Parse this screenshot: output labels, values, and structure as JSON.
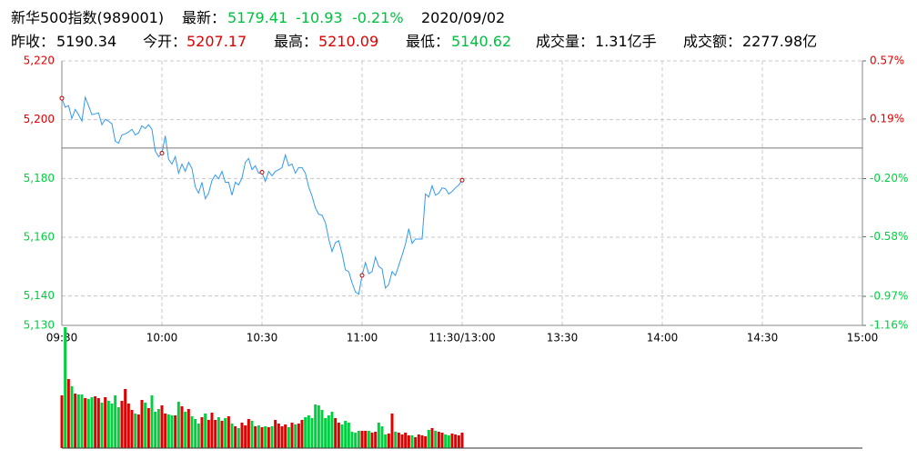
{
  "header": {
    "name": "新华500指数(989001)",
    "quote": [
      {
        "text": "最新：",
        "color": "#000000"
      },
      {
        "text": "5179.41",
        "color": "#00c040"
      },
      {
        "text": "-10.93",
        "color": "#00c040"
      },
      {
        "text": "-0.21%",
        "color": "#00c040"
      },
      {
        "text": "2020/09/02",
        "color": "#000000"
      }
    ],
    "stats": [
      {
        "label": "昨收：",
        "value": "5190.34",
        "color": "#000000"
      },
      {
        "label": "今开：",
        "value": "5207.17",
        "color": "#e00000"
      },
      {
        "label": "最高：",
        "value": "5210.09",
        "color": "#e00000"
      },
      {
        "label": "最低：",
        "value": "5140.62",
        "color": "#00c040"
      },
      {
        "label": "成交量：",
        "value": "1.31亿手",
        "color": "#000000"
      },
      {
        "label": "成交额：",
        "value": "2277.98亿",
        "color": "#000000"
      }
    ]
  },
  "chart_data": {
    "type": "intraday",
    "preclose": 5190.34,
    "line_color": "#3399ee",
    "up_color": "#e00000",
    "down_color": "#00d040",
    "grid": true,
    "xlim": [
      0,
      240
    ],
    "xticks": [
      {
        "value": 0,
        "label": "09:30"
      },
      {
        "value": 30,
        "label": "10:00"
      },
      {
        "value": 60,
        "label": "10:30"
      },
      {
        "value": 90,
        "label": "11:00"
      },
      {
        "value": 120,
        "label": "11:30/13:00"
      },
      {
        "value": 150,
        "label": "13:30"
      },
      {
        "value": 180,
        "label": "14:00"
      },
      {
        "value": 210,
        "label": "14:30"
      },
      {
        "value": 240,
        "label": "15:00"
      }
    ],
    "ylim": [
      5130,
      5220
    ],
    "yticks": [
      {
        "value": 5220,
        "label": "5,220"
      },
      {
        "value": 5200,
        "label": "5,200"
      },
      {
        "value": 5180,
        "label": "5,180"
      },
      {
        "value": 5160,
        "label": "5,160"
      },
      {
        "value": 5140,
        "label": "5,140"
      },
      {
        "value": 5130,
        "label": "5,130"
      }
    ],
    "y2lim": [
      -1.16,
      0.57
    ],
    "y2ticks": [
      {
        "value": 0.57,
        "label": "0.57%"
      },
      {
        "value": 0.19,
        "label": "0.19%"
      },
      {
        "value": -0.2,
        "label": "-0.20%"
      },
      {
        "value": -0.58,
        "label": "-0.58%"
      },
      {
        "value": -0.97,
        "label": "-0.97%"
      },
      {
        "value": -1.16,
        "label": "-1.16%"
      }
    ],
    "values": [
      5207.3,
      5204.2,
      5204.8,
      5200.4,
      5203.5,
      5201.7,
      5199.5,
      5207.6,
      5204.8,
      5201.7,
      5202,
      5202.3,
      5198.3,
      5200.1,
      5199.5,
      5198.6,
      5192.7,
      5192,
      5194.8,
      5195.2,
      5195.8,
      5196.7,
      5194.8,
      5195.5,
      5197.9,
      5197,
      5198.3,
      5196.7,
      5189.3,
      5187.4,
      5188.6,
      5194.5,
      5186.5,
      5184.9,
      5187.4,
      5181.8,
      5184.9,
      5182.4,
      5185.5,
      5183.4,
      5177.1,
      5175,
      5178.7,
      5173.1,
      5175,
      5179.3,
      5181.2,
      5179.9,
      5182.4,
      5178.7,
      5178.7,
      5174.3,
      5178.7,
      5177.8,
      5180.2,
      5185.5,
      5186.8,
      5183,
      5184.3,
      5181.8,
      5182.1,
      5179,
      5182.4,
      5180.9,
      5182.4,
      5183,
      5183.7,
      5188,
      5184.3,
      5184.9,
      5181.8,
      5183.7,
      5183.7,
      5181.8,
      5177.1,
      5174,
      5170,
      5167.8,
      5167.5,
      5165,
      5159.4,
      5155.1,
      5158.2,
      5158.8,
      5154.5,
      5148.9,
      5148.3,
      5144.5,
      5141.4,
      5140.6,
      5147,
      5151.4,
      5147.6,
      5148.3,
      5153.2,
      5150.1,
      5149.2,
      5142.7,
      5143.9,
      5148.3,
      5147,
      5150.4,
      5153.9,
      5157.6,
      5162.9,
      5157.9,
      5159.4,
      5159.4,
      5159.4,
      5174.7,
      5173.7,
      5177.5,
      5174.3,
      5175,
      5176.8,
      5176.5,
      5174.7,
      5175.6,
      5176.8,
      5177.8,
      5179.41
    ],
    "vlim": [
      0,
      133
    ],
    "volume": [
      58,
      133,
      76,
      68,
      60,
      59,
      59,
      55,
      54,
      56,
      57,
      55,
      50,
      56,
      52,
      49,
      58,
      45,
      52,
      65,
      49,
      42,
      38,
      37,
      53,
      50,
      44,
      58,
      40,
      43,
      47,
      38,
      37,
      36,
      36,
      51,
      46,
      40,
      43,
      35,
      32,
      27,
      34,
      38,
      31,
      39,
      31,
      34,
      30,
      33,
      35,
      27,
      24,
      22,
      28,
      25,
      32,
      30,
      24,
      25,
      23,
      24,
      23,
      24,
      31,
      27,
      24,
      26,
      23,
      28,
      26,
      27,
      31,
      34,
      36,
      33,
      48,
      47,
      42,
      33,
      36,
      40,
      33,
      28,
      26,
      30,
      28,
      18,
      17,
      19,
      19,
      19,
      19,
      17,
      18,
      28,
      24,
      15,
      16,
      38,
      18,
      17,
      15,
      17,
      14,
      14,
      12,
      15,
      14,
      13,
      20,
      22,
      19,
      18,
      17,
      15,
      14,
      16,
      15,
      14,
      17
    ]
  }
}
